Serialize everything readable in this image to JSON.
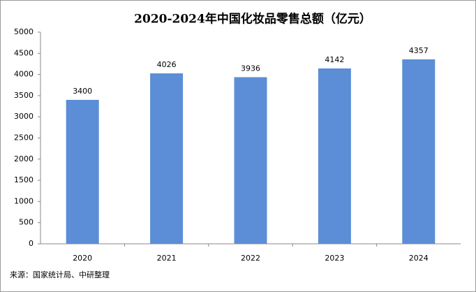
{
  "chart_data": {
    "type": "bar",
    "title": "2020-2024年中国化妆品零售总额（亿元）",
    "categories": [
      "2020",
      "2021",
      "2022",
      "2023",
      "2024"
    ],
    "values": [
      3400,
      4026,
      3936,
      4142,
      4357
    ],
    "color": "#5b8ed6",
    "ylim": [
      0,
      5000
    ],
    "yticks": [
      0,
      500,
      1000,
      1500,
      2000,
      2500,
      3000,
      3500,
      4000,
      4500,
      5000
    ],
    "grid": false,
    "source": "来源：国家统计局、中研整理"
  }
}
